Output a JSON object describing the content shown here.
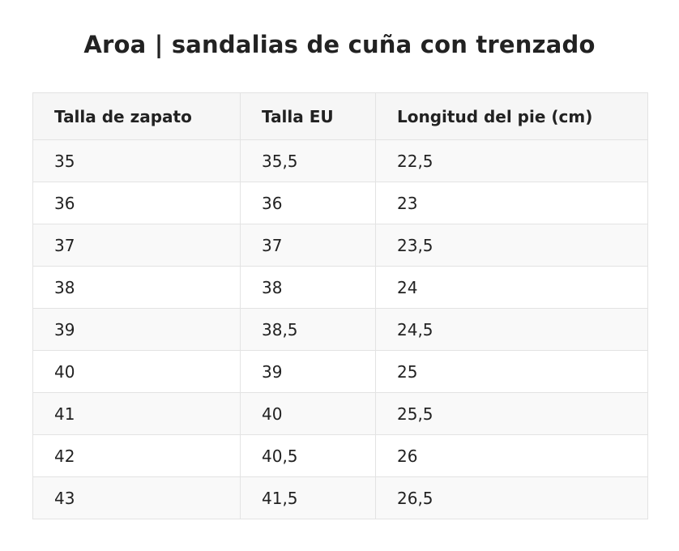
{
  "title": "Aroa | sandalias de cuña con trenzado",
  "table": {
    "headers": [
      "Talla de zapato",
      "Talla EU",
      "Longitud del pie (cm)"
    ],
    "rows": [
      [
        "35",
        "35,5",
        "22,5"
      ],
      [
        "36",
        "36",
        "23"
      ],
      [
        "37",
        "37",
        "23,5"
      ],
      [
        "38",
        "38",
        "24"
      ],
      [
        "39",
        "38,5",
        "24,5"
      ],
      [
        "40",
        "39",
        "25"
      ],
      [
        "41",
        "40",
        "25,5"
      ],
      [
        "42",
        "40,5",
        "26"
      ],
      [
        "43",
        "41,5",
        "26,5"
      ]
    ]
  },
  "colors": {
    "text": "#222222",
    "header_bg": "#f6f6f6",
    "stripe_bg": "#f9f9f9",
    "border": "#e3e3e3"
  }
}
